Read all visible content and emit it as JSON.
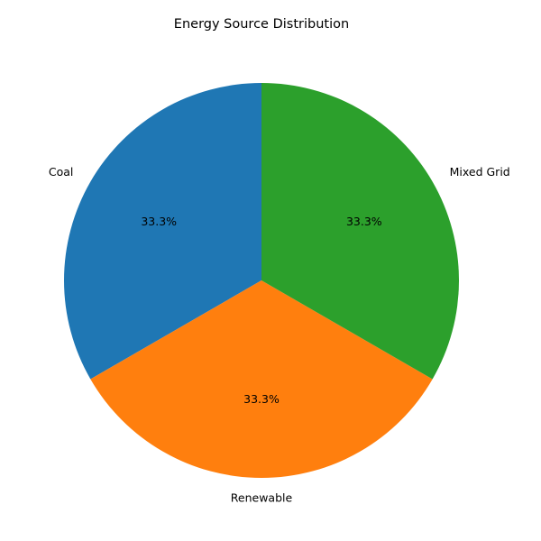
{
  "chart_data": {
    "type": "pie",
    "title": "Energy Source Distribution",
    "categories": [
      "Coal",
      "Renewable",
      "Mixed Grid"
    ],
    "values": [
      33.3,
      33.3,
      33.3
    ],
    "percent_labels": [
      "33.3%",
      "33.3%",
      "33.3%"
    ],
    "colors": [
      "#1f77b4",
      "#ff7f0e",
      "#2ca02c"
    ],
    "start_angle_deg": 90,
    "direction": "counterclockwise",
    "legend": "none"
  }
}
